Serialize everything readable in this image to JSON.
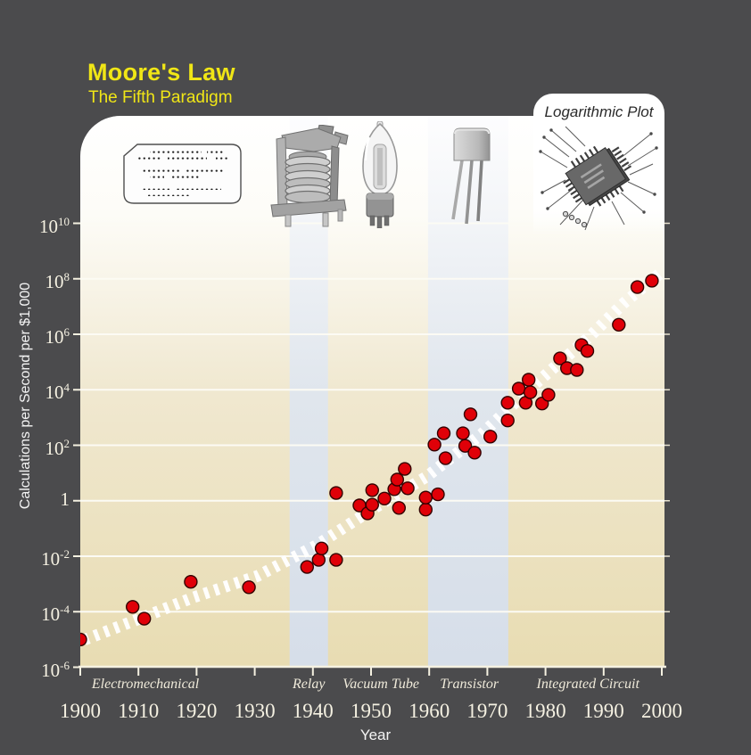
{
  "page": {
    "title": "Moore's Law",
    "subtitle": "The Fifth Paradigm",
    "badge": "Logarithmic Plot"
  },
  "colors": {
    "background": "#4b4b4d",
    "title_yellow": "#f0e616",
    "cream_band": "#e9ddb4",
    "blue_band": "#d7dfe8",
    "gridline": "#fcfbf4",
    "point_fill": "#e00008",
    "point_stroke": "#330000",
    "trend": "#ffffff",
    "tick_text": "#f5f1e2"
  },
  "era_icons": [
    "punched-card",
    "relay",
    "vacuum-tube",
    "transistor",
    "integrated-circuit"
  ],
  "chart_data": {
    "type": "scatter",
    "title": "Moore's Law",
    "subtitle": "The Fifth Paradigm",
    "xlabel": "Year",
    "ylabel": "Calculations per Second per $1,000",
    "scale": "logarithmic-y",
    "xlim": [
      1900,
      2000
    ],
    "ylim_log10": [
      -6,
      10
    ],
    "grid": "horizontal white lines at even powers of 10",
    "legend": "none",
    "x_ticks": [
      1900,
      1910,
      1920,
      1930,
      1940,
      1950,
      1960,
      1970,
      1980,
      1990,
      2000
    ],
    "y_tick_exponents": [
      10,
      8,
      6,
      4,
      2,
      0,
      -2,
      -4,
      -6
    ],
    "eras": [
      {
        "label": "Electromechanical",
        "label_year": 1911.2,
        "band": null
      },
      {
        "label": "Relay",
        "label_year": 1939.3,
        "band": [
          1936.0,
          1942.6
        ]
      },
      {
        "label": "Vacuum Tube",
        "label_year": 1951.7,
        "band": null
      },
      {
        "label": "Transistor",
        "label_year": 1966.9,
        "band": [
          1959.8,
          1973.6
        ]
      },
      {
        "label": "Integrated Circuit",
        "label_year": 1987.3,
        "band": null
      }
    ],
    "points": [
      [
        1900,
        1e-05
      ],
      [
        1909,
        0.00015
      ],
      [
        1911,
        5.6e-05
      ],
      [
        1919,
        0.0012
      ],
      [
        1929,
        0.00076
      ],
      [
        1939,
        0.0041
      ],
      [
        1941,
        0.0074
      ],
      [
        1941.5,
        0.019
      ],
      [
        1944,
        0.0074
      ],
      [
        1944,
        1.9
      ],
      [
        1948,
        0.68
      ],
      [
        1949.4,
        0.35
      ],
      [
        1950.2,
        2.4
      ],
      [
        1950.2,
        0.72
      ],
      [
        1952.3,
        1.2
      ],
      [
        1954,
        2.6
      ],
      [
        1954.5,
        5.8
      ],
      [
        1954.8,
        0.55
      ],
      [
        1956.3,
        2.8
      ],
      [
        1955.8,
        14
      ],
      [
        1959.4,
        0.48
      ],
      [
        1959.4,
        1.3
      ],
      [
        1961.5,
        1.7
      ],
      [
        1960.9,
        105
      ],
      [
        1962.5,
        270
      ],
      [
        1962.8,
        34
      ],
      [
        1965.8,
        270
      ],
      [
        1966.2,
        95
      ],
      [
        1967.1,
        1300
      ],
      [
        1967.8,
        54
      ],
      [
        1970.5,
        205
      ],
      [
        1973.5,
        780
      ],
      [
        1973.5,
        3400
      ],
      [
        1975.4,
        11000
      ],
      [
        1976.6,
        3400
      ],
      [
        1977.1,
        23000
      ],
      [
        1977.4,
        8100
      ],
      [
        1979.4,
        3200
      ],
      [
        1980.5,
        6600
      ],
      [
        1982.5,
        135000
      ],
      [
        1983.7,
        60000
      ],
      [
        1985.4,
        52000
      ],
      [
        1986.2,
        410000
      ],
      [
        1987.2,
        250000
      ],
      [
        1992.6,
        2200000.0
      ],
      [
        1995.8,
        50000000.0
      ],
      [
        1998.3,
        85000000.0
      ]
    ],
    "trend_line": {
      "style": "white hatched band",
      "points_log10": [
        [
          1899.0,
          -5.15
        ],
        [
          1909.0,
          -4.35
        ],
        [
          1919.5,
          -3.48
        ],
        [
          1930.5,
          -2.71
        ],
        [
          1940.5,
          -1.62
        ],
        [
          1950.5,
          -0.27
        ],
        [
          1959.5,
          0.86
        ],
        [
          1969.0,
          2.4
        ],
        [
          1978.0,
          4.17
        ],
        [
          1987.5,
          5.9
        ],
        [
          1993.5,
          7.13
        ],
        [
          2000.3,
          8.3
        ]
      ]
    }
  }
}
